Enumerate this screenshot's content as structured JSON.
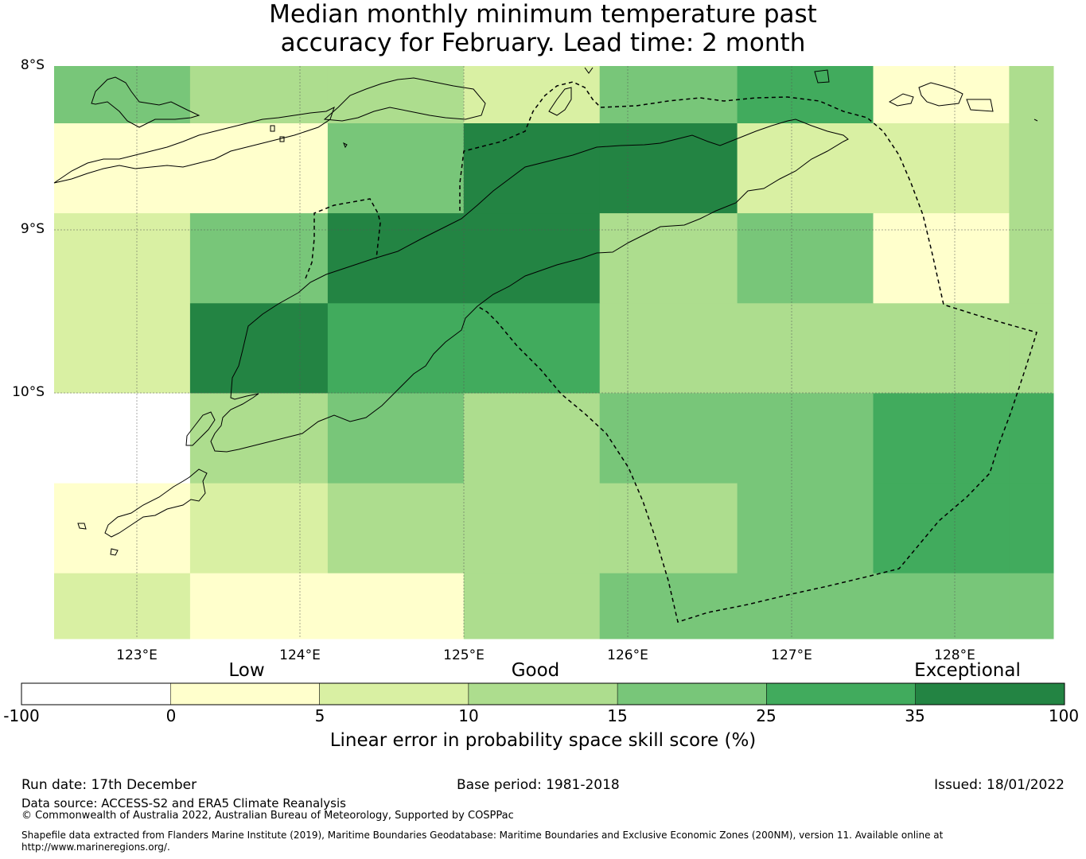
{
  "title": {
    "line1": "Median monthly minimum temperature past",
    "line2": "accuracy for February. Lead time: 2 month"
  },
  "map": {
    "lat_labels": [
      "8°S",
      "9°S",
      "10°S"
    ],
    "lon_labels": [
      "123°E",
      "124°E",
      "125°E",
      "126°E",
      "127°E",
      "128°E"
    ],
    "grid_lon": [
      122.5,
      123.33,
      124.17,
      125.0,
      125.83,
      126.67,
      127.5,
      128.33,
      128.6
    ],
    "grid_lat_edges": [
      -7.95,
      -8.3,
      -8.85,
      -9.4,
      -9.95,
      -10.5,
      -11.05,
      -11.45
    ],
    "cells": [
      [
        3,
        2,
        2,
        1,
        3,
        4,
        0,
        2
      ],
      [
        0,
        0,
        3,
        5,
        5,
        1,
        1,
        2
      ],
      [
        1,
        3,
        5,
        5,
        2,
        3,
        0,
        2
      ],
      [
        1,
        5,
        4,
        4,
        2,
        2,
        2,
        2
      ],
      [
        -1,
        2,
        3,
        2,
        3,
        3,
        4,
        4
      ],
      [
        0,
        1,
        2,
        2,
        2,
        3,
        4,
        4
      ],
      [
        1,
        0,
        0,
        2,
        3,
        3,
        3,
        3
      ]
    ]
  },
  "colorbar": {
    "words": [
      "Low",
      "Good",
      "Exceptional"
    ],
    "ticks": [
      "-100",
      "0",
      "5",
      "10",
      "15",
      "25",
      "35",
      "100"
    ],
    "colors": [
      "#ffffff",
      "#ffffcc",
      "#d9f0a3",
      "#addd8e",
      "#78c679",
      "#41ab5d",
      "#238443"
    ],
    "caption": "Linear error in probability space skill score (%)"
  },
  "footer": {
    "run_date": "Run date: 17th December",
    "base_period": "Base period: 1981-2018",
    "issued": "Issued: 18/01/2022",
    "data_source": "Data source: ACCESS-S2 and ERA5 Climate Reanalysis",
    "copyright": "© Commonwealth of Australia 2022, Australian Bureau of Meteorology, Supported by COSPPac",
    "shapefile": "Shapefile data extracted from Flanders Marine Institute (2019), Maritime Boundaries Geodatabase: Maritime Boundaries and Exclusive Economic Zones (200NM), version 11. Available online at http://www.marineregions.org/."
  }
}
